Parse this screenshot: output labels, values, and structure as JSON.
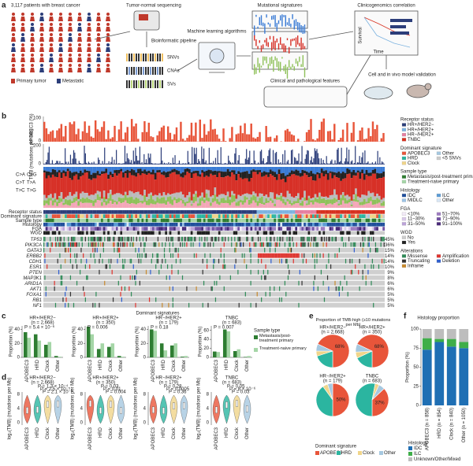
{
  "panel_labels": [
    "a",
    "b",
    "c",
    "d",
    "e",
    "f"
  ],
  "panel_a": {
    "cohort": "3,117 patients with breast cancer",
    "legend": [
      "Primary tumor",
      "Metastatic"
    ],
    "sequencing": "Tumor-normal sequencing",
    "pipeline": "Bioinformatic pipeline",
    "variants": [
      "SNVs",
      "CNAs",
      "SVs"
    ],
    "ml": "Machine learning algorithms",
    "signatures": "Mutational signatures",
    "clinical": "Clinical and pathological features",
    "correlation": "Clinicogenomics correlation",
    "survival": "Survival",
    "time": "Time",
    "validation": "Cell and in vivo model validation"
  },
  "panel_b": {
    "apobec_axis": "APOBEC3 (%)",
    "apobec_ticks": [
      "100",
      "0"
    ],
    "tmb_axis": "TMB (mutations per Mb)",
    "tmb_ticks": [
      "200",
      "0"
    ],
    "substitutions": [
      "C>A",
      "C>G",
      "C>T",
      "T>A",
      "T>C",
      "T>G"
    ],
    "tracks": [
      "Receptor status",
      "Dominant signature",
      "Sample type",
      "Histology",
      "FGA",
      "WGD"
    ],
    "genes": [
      {
        "name": "TP53",
        "freq": "45%"
      },
      {
        "name": "PIK3CA",
        "freq": "36%"
      },
      {
        "name": "GATA3",
        "freq": "15%"
      },
      {
        "name": "ERBB2",
        "freq": "14%"
      },
      {
        "name": "CDH1",
        "freq": "14%"
      },
      {
        "name": "ESR1",
        "freq": "10%"
      },
      {
        "name": "PTEN",
        "freq": "9%"
      },
      {
        "name": "MAP3K1",
        "freq": "8%"
      },
      {
        "name": "ARID1A",
        "freq": "6%"
      },
      {
        "name": "AKT1",
        "freq": "6%"
      },
      {
        "name": "FOXA1",
        "freq": "5%"
      },
      {
        "name": "RB1",
        "freq": "5%"
      },
      {
        "name": "NF1",
        "freq": "5%"
      }
    ],
    "legends": [
      {
        "title": "Receptor status",
        "cols": 1,
        "items": [
          {
            "name": "HR+/HER2−",
            "color": "#2c3e7a"
          },
          {
            "name": "HR+/HER2+",
            "color": "#7db3e0"
          },
          {
            "name": "HR−/HER2+",
            "color": "#e57fa0"
          },
          {
            "name": "TNBC",
            "color": "#d7301f"
          }
        ]
      },
      {
        "title": "Dominant signature",
        "cols": 2,
        "items": [
          {
            "name": "APOBEC3",
            "color": "#e8553a"
          },
          {
            "name": "Other",
            "color": "#a6c8e0"
          },
          {
            "name": "HRD",
            "color": "#2bb5a0"
          },
          {
            "name": "<5 SNVs",
            "color": "#cccccc"
          },
          {
            "name": "Clock",
            "color": "#f0d58a"
          }
        ]
      },
      {
        "title": "Sample type",
        "cols": 1,
        "items": [
          {
            "name": "Metastasis/post-treatment primary",
            "color": "#2e7d32"
          },
          {
            "name": "Treatment-naive primary",
            "color": "#a5d6a7"
          }
        ]
      },
      {
        "title": "Histology",
        "cols": 2,
        "items": [
          {
            "name": "IDC",
            "color": "#1f4e9c"
          },
          {
            "name": "ILC",
            "color": "#5b9bd5"
          },
          {
            "name": "MIDLC",
            "color": "#9cc3e6"
          },
          {
            "name": "Other",
            "color": "#d9e7f5"
          }
        ]
      },
      {
        "title": "FGA",
        "cols": 2,
        "items": [
          {
            "name": "<10%",
            "color": "#f2eaf7"
          },
          {
            "name": "51–70%",
            "color": "#9e7cc1"
          },
          {
            "name": "11–30%",
            "color": "#d9c8ea"
          },
          {
            "name": "71–90%",
            "color": "#7352a3"
          },
          {
            "name": "31–50%",
            "color": "#bca3d9"
          },
          {
            "name": "91–100%",
            "color": "#4a2a7a"
          }
        ]
      },
      {
        "title": "WGD",
        "cols": 1,
        "items": [
          {
            "name": "No",
            "color": "#cccccc"
          },
          {
            "name": "Yes",
            "color": "#222222"
          }
        ]
      },
      {
        "title": "Alterations",
        "cols": 2,
        "items": [
          {
            "name": "Missense",
            "color": "#2e8b57"
          },
          {
            "name": "Amplification",
            "color": "#e0342f"
          },
          {
            "name": "Truncating",
            "color": "#333333"
          },
          {
            "name": "Deletion",
            "color": "#2f5fd0"
          },
          {
            "name": "Inframe",
            "color": "#c88a2e"
          }
        ]
      }
    ]
  },
  "panel_d": {
    "y_label": "log₂(TMB) (mutations per Mb)",
    "yticks": [
      "8",
      "4",
      "0"
    ],
    "categories": [
      "APOBEC3",
      "HRD",
      "Clock",
      "Other"
    ],
    "plots": [
      {
        "subtitle": "HR+/HER2−",
        "n": "(n = 2,668)",
        "p": [
          "P = 1.3 × 10⁻⁴",
          "P = 2.5 × 10⁻⁵",
          "P = 2.1 × 10⁻⁶"
        ]
      },
      {
        "subtitle": "HR+/HER2+",
        "n": "(n = 350)",
        "p": [
          "P = 0.03",
          "P = 0.01",
          "P = 0.004"
        ]
      },
      {
        "subtitle": "HR−/HER2+",
        "n": "(n = 179)",
        "p": [
          "P = 0.28",
          "P = 0.0005",
          "P = 0.36"
        ]
      },
      {
        "subtitle": "TNBC",
        "n": "(n = 683)",
        "p": [
          "P = 0.05",
          "P = 8 × 10⁻⁶",
          "P = 0.03"
        ]
      }
    ]
  },
  "chart_data": [
    {
      "type": "bar",
      "title": "Dominant signatures",
      "subtitle": "HR+/HER2−",
      "n": "(n = 2,668)",
      "annotation": "P = 5.4 × 10⁻⁶",
      "y_label": "Proportion (%)",
      "legend_title": "Sample type",
      "categories": [
        "APOBEC3",
        "HRD",
        "Clock",
        "Other"
      ],
      "series": [
        {
          "name": "Metastasis/post-treatment primary",
          "color": "#2e7d32",
          "values": [
            36,
            33,
            18,
            2
          ]
        },
        {
          "name": "Treatment-naive primary",
          "color": "#a5d6a7",
          "values": [
            28,
            24,
            22,
            1
          ]
        }
      ],
      "ylim": [
        0,
        45
      ],
      "yticks": [
        0,
        20,
        40
      ]
    },
    {
      "type": "bar",
      "subtitle": "HR+/HER2+",
      "n": "(n = 350)",
      "annotation": "P = 0.006",
      "y_label": "Proportion (%)",
      "categories": [
        "APOBEC3",
        "HRD",
        "Clock",
        "Other"
      ],
      "series": [
        {
          "color": "#2e7d32",
          "values": [
            44,
            12,
            15,
            2
          ]
        },
        {
          "color": "#a5d6a7",
          "values": [
            33,
            20,
            20,
            1
          ]
        }
      ],
      "ylim": [
        0,
        45
      ],
      "yticks": [
        0,
        20,
        40
      ]
    },
    {
      "type": "bar",
      "subtitle": "HR−/HER2+",
      "n": "(n = 179)",
      "annotation": "P = 0.18",
      "y_label": "Proportion (%)",
      "categories": [
        "APOBEC3",
        "HRD",
        "Clock",
        "Other"
      ],
      "series": [
        {
          "color": "#2e7d32",
          "values": [
            40,
            20,
            17,
            1
          ]
        },
        {
          "color": "#a5d6a7",
          "values": [
            38,
            10,
            20,
            2
          ]
        }
      ],
      "ylim": [
        0,
        45
      ],
      "yticks": [
        0,
        20,
        40
      ]
    },
    {
      "type": "bar",
      "subtitle": "TNBC",
      "n": "(n = 683)",
      "annotation": "P = 0.007",
      "y_label": "Proportion (%)",
      "categories": [
        "APOBEC3",
        "HRD",
        "Clock",
        "Other"
      ],
      "series": [
        {
          "color": "#2e7d32",
          "values": [
            13,
            62,
            14,
            1
          ]
        },
        {
          "color": "#a5d6a7",
          "values": [
            12,
            58,
            18,
            3
          ]
        }
      ],
      "ylim": [
        0,
        70
      ],
      "yticks": [
        0,
        20,
        40,
        60
      ]
    },
    {
      "type": "pie",
      "title": "Proportion of TMB-high (≥10 mutations per Mb)",
      "subtitle": "HR+/HER2−",
      "n": "(n = 2,668)",
      "legend_title": "Dominant signature",
      "categories": [
        "APOBEC3",
        "HRD",
        "Clock",
        "Other"
      ],
      "colors": [
        "#e8553a",
        "#2bb5a0",
        "#f0d58a",
        "#a6c8e0"
      ],
      "values": [
        68,
        20,
        5,
        7
      ],
      "value_labels": [
        "68%",
        null,
        null,
        null
      ]
    },
    {
      "type": "pie",
      "subtitle": "HR+/HER2+",
      "n": "(n = 350)",
      "colors": [
        "#e8553a",
        "#2bb5a0",
        "#f0d58a",
        "#a6c8e0"
      ],
      "values": [
        68,
        18,
        6,
        8
      ],
      "value_labels": [
        "68%",
        null,
        null,
        null
      ]
    },
    {
      "type": "pie",
      "subtitle": "HR−/HER2+",
      "n": "(n = 179)",
      "colors": [
        "#e8553a",
        "#2bb5a0",
        "#f0d58a",
        "#a6c8e0"
      ],
      "values": [
        50,
        40,
        5,
        5
      ],
      "value_labels": [
        "50%",
        null,
        null,
        null
      ]
    },
    {
      "type": "pie",
      "subtitle": "TNBC",
      "n": "(n = 683)",
      "colors": [
        "#e8553a",
        "#2bb5a0",
        "#f0d58a",
        "#a6c8e0"
      ],
      "values": [
        37,
        53,
        4,
        6
      ],
      "value_labels": [
        "37%",
        null,
        null,
        null
      ]
    },
    {
      "type": "stacked_bar",
      "title": "Histology proportion",
      "y_label": "Proportion (%)",
      "legend_title": "Histology",
      "categories": [
        "APOBEC3 (n = 858)",
        "HRD (n = 854)",
        "Clock (n = 840)",
        "Other (n = 1050)"
      ],
      "series": [
        {
          "name": "IDC",
          "color": "#1f6fb4",
          "values": [
            73,
            83,
            77,
            75
          ]
        },
        {
          "name": "ILC",
          "color": "#3fae49",
          "values": [
            15,
            4,
            10,
            8
          ]
        },
        {
          "name": "Unknown/Other/Mixed",
          "color": "#bdbdbd",
          "values": [
            12,
            13,
            13,
            17
          ]
        }
      ],
      "ylim": [
        0,
        100
      ],
      "yticks": [
        0,
        25,
        50,
        75,
        100
      ]
    }
  ]
}
